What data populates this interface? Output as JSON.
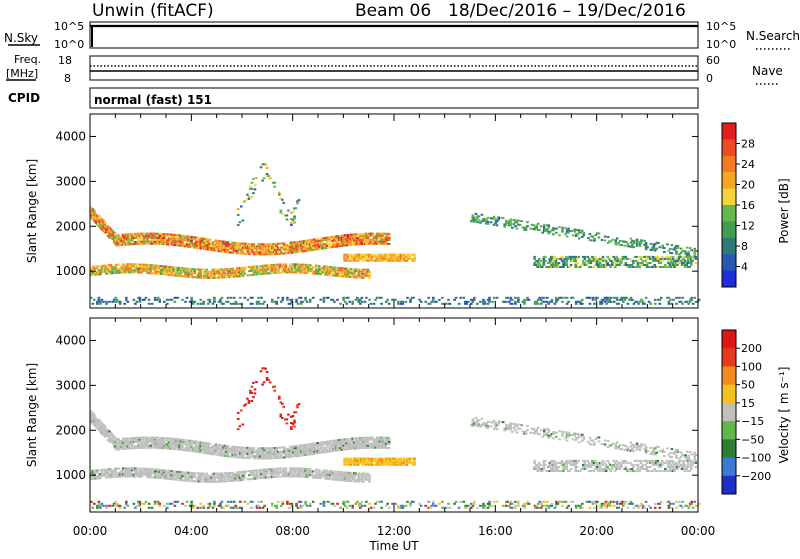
{
  "header": {
    "radar": "Unwin (fitACF)",
    "beam": "Beam 06",
    "date_range": "18/Dec/2016 – 19/Dec/2016"
  },
  "top_panels": {
    "nsky": {
      "label": "N.Sky",
      "ticks": [
        "10^5",
        "10^0"
      ],
      "right_label": "N.Search",
      "right_ticks": [
        "10^5",
        "10^0"
      ]
    },
    "freq": {
      "label_line1": "Freq.",
      "label_line2": "[MHz]",
      "ticks": [
        "18",
        "8"
      ],
      "right_label": "Nave",
      "right_ticks": [
        "60",
        "0"
      ]
    },
    "cpid": {
      "label": "CPID",
      "text": "normal (fast) 151"
    }
  },
  "chart_data": [
    {
      "type": "heatmap",
      "name": "power",
      "ylabel": "Slant Range [km]",
      "ylim": [
        180,
        4500
      ],
      "yticks": [
        "4000",
        "3000",
        "2000",
        "1000"
      ],
      "xlim": [
        0,
        24
      ],
      "colorbar": {
        "label": "Power [dB]",
        "ticks": [
          "28",
          "24",
          "20",
          "16",
          "12",
          "8",
          "4"
        ],
        "colors": [
          "#1a2edc",
          "#2a57b5",
          "#2e7a74",
          "#3f9e52",
          "#64b74a",
          "#f3d43a",
          "#f5a623",
          "#f47a22",
          "#ef4b22",
          "#e41e1e"
        ]
      }
    },
    {
      "type": "heatmap",
      "name": "velocity",
      "ylabel": "Slant Range [km]",
      "ylim": [
        180,
        4500
      ],
      "yticks": [
        "4000",
        "3000",
        "2000",
        "1000"
      ],
      "xlim": [
        0,
        24
      ],
      "colorbar": {
        "label": "Velocity [ m s⁻¹]",
        "ticks": [
          "200",
          "100",
          "50",
          "15",
          "−15",
          "−50",
          "−100",
          "−200"
        ],
        "colors": [
          "#1d2fc7",
          "#3a7bd5",
          "#2e7d32",
          "#5fb84a",
          "#c0c0b8",
          "#f4c21a",
          "#f38a1d",
          "#e53a1c",
          "#e01515"
        ]
      }
    }
  ],
  "time_axis": {
    "ticks": [
      "00:00",
      "04:00",
      "08:00",
      "12:00",
      "16:00",
      "20:00",
      "00:00"
    ],
    "label": "Time UT"
  },
  "colors": {
    "ground": "#bfbfbf",
    "frame": "#000000"
  }
}
